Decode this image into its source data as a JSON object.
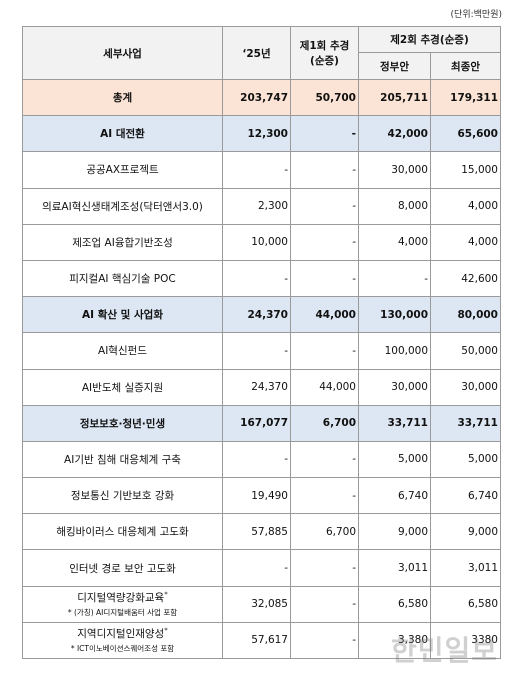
{
  "unit": "(단위:백만원)",
  "header": {
    "name": "세부사업",
    "y25": "‘25년",
    "supp1": [
      "제1회 추경",
      "(순증)"
    ],
    "supp2": "제2회 추경(순증)",
    "gov": "정부안",
    "final": "최종안"
  },
  "rows": [
    {
      "name": "총계",
      "cells": [
        "203,747",
        "50,700",
        "205,711",
        "179,311"
      ],
      "fill": "#fbe4d5",
      "bold": true
    },
    {
      "name": "AI 대전환",
      "cells": [
        "12,300",
        "-",
        "42,000",
        "65,600"
      ],
      "fill": "#dde7f3",
      "bold": true
    },
    {
      "name": "공공AX프로젝트",
      "cells": [
        "-",
        "-",
        "30,000",
        "15,000"
      ]
    },
    {
      "name": "의료AI혁신생태계조성(닥터앤서3.0)",
      "cells": [
        "2,300",
        "-",
        "8,000",
        "4,000"
      ]
    },
    {
      "name": "제조업 AI융합기반조성",
      "cells": [
        "10,000",
        "-",
        "4,000",
        "4,000"
      ]
    },
    {
      "name": "피지컬AI 핵심기술 POC",
      "cells": [
        "-",
        "-",
        "-",
        "42,600"
      ]
    },
    {
      "name": "AI 확산 및 사업화",
      "cells": [
        "24,370",
        "44,000",
        "130,000",
        "80,000"
      ],
      "fill": "#dde7f3",
      "bold": true
    },
    {
      "name": "AI혁신펀드",
      "cells": [
        "-",
        "-",
        "100,000",
        "50,000"
      ]
    },
    {
      "name": "AI반도체 실증지원",
      "cells": [
        "24,370",
        "44,000",
        "30,000",
        "30,000"
      ]
    },
    {
      "name": "정보보호·청년·민생",
      "cells": [
        "167,077",
        "6,700",
        "33,711",
        "33,711"
      ],
      "fill": "#dde7f3",
      "bold": true
    },
    {
      "name": "AI기반 침해 대응체계 구축",
      "cells": [
        "-",
        "-",
        "5,000",
        "5,000"
      ]
    },
    {
      "name": "정보통신 기반보호 강화",
      "cells": [
        "19,490",
        "-",
        "6,740",
        "6,740"
      ]
    },
    {
      "name": "해킹바이러스 대응체계 고도화",
      "cells": [
        "57,885",
        "6,700",
        "9,000",
        "9,000"
      ]
    },
    {
      "name": "인터넷 경로 보안 고도화",
      "cells": [
        "-",
        "-",
        "3,011",
        "3,011"
      ]
    },
    {
      "name": "디지털역량강화교육",
      "mark": "*",
      "note": "* (가칭) AI디지털배움터 사업 포함",
      "cells": [
        "32,085",
        "-",
        "6,580",
        "6,580"
      ]
    },
    {
      "name": "지역디지털인재양성",
      "mark": "*",
      "note": "* ICT이노베이션스퀘어조성 포함",
      "cells": [
        "57,617",
        "-",
        "3,380",
        "3380"
      ]
    }
  ],
  "watermark": "한민일보"
}
